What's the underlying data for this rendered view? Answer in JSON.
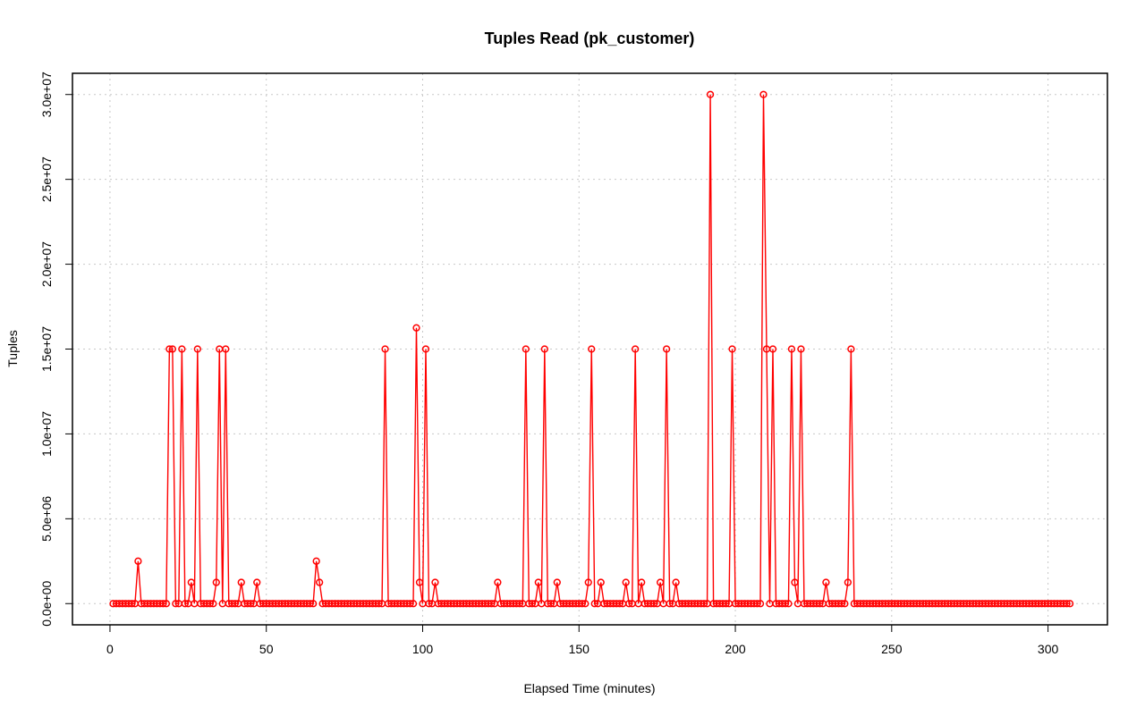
{
  "chart_data": {
    "type": "line",
    "title": "Tuples Read (pk_customer)",
    "xlabel": "Elapsed Time (minutes)",
    "ylabel": "Tuples",
    "xlim": [
      -12,
      319
    ],
    "ylim": [
      -1250000,
      31250000
    ],
    "x_ticks": [
      0,
      50,
      100,
      150,
      200,
      250,
      300
    ],
    "x_tick_labels": [
      "0",
      "50",
      "100",
      "150",
      "200",
      "250",
      "300"
    ],
    "y_ticks": [
      0,
      5000000,
      10000000,
      15000000,
      20000000,
      25000000,
      30000000
    ],
    "y_tick_labels": [
      "0.0e+00",
      "5.0e+06",
      "1.0e+07",
      "1.5e+07",
      "2.0e+07",
      "2.5e+07",
      "3.0e+07"
    ],
    "grid": true,
    "series_color": "#ff0000",
    "x_range": [
      1,
      307
    ],
    "baseline": 0,
    "nonzero_points": [
      [
        9,
        2500000
      ],
      [
        19,
        15000000
      ],
      [
        20,
        15000000
      ],
      [
        23,
        15000000
      ],
      [
        26,
        1250000
      ],
      [
        28,
        15000000
      ],
      [
        34,
        1250000
      ],
      [
        35,
        15000000
      ],
      [
        37,
        15000000
      ],
      [
        42,
        1250000
      ],
      [
        47,
        1250000
      ],
      [
        66,
        2500000
      ],
      [
        67,
        1250000
      ],
      [
        88,
        15000000
      ],
      [
        98,
        16250000
      ],
      [
        99,
        1250000
      ],
      [
        101,
        15000000
      ],
      [
        104,
        1250000
      ],
      [
        124,
        1250000
      ],
      [
        133,
        15000000
      ],
      [
        137,
        1250000
      ],
      [
        139,
        15000000
      ],
      [
        143,
        1250000
      ],
      [
        153,
        1250000
      ],
      [
        154,
        15000000
      ],
      [
        157,
        1250000
      ],
      [
        165,
        1250000
      ],
      [
        168,
        15000000
      ],
      [
        170,
        1250000
      ],
      [
        176,
        1250000
      ],
      [
        178,
        15000000
      ],
      [
        181,
        1250000
      ],
      [
        192,
        30000000
      ],
      [
        199,
        15000000
      ],
      [
        209,
        30000000
      ],
      [
        210,
        15000000
      ],
      [
        212,
        15000000
      ],
      [
        218,
        15000000
      ],
      [
        219,
        1250000
      ],
      [
        221,
        15000000
      ],
      [
        229,
        1250000
      ],
      [
        236,
        1250000
      ],
      [
        237,
        15000000
      ]
    ]
  }
}
